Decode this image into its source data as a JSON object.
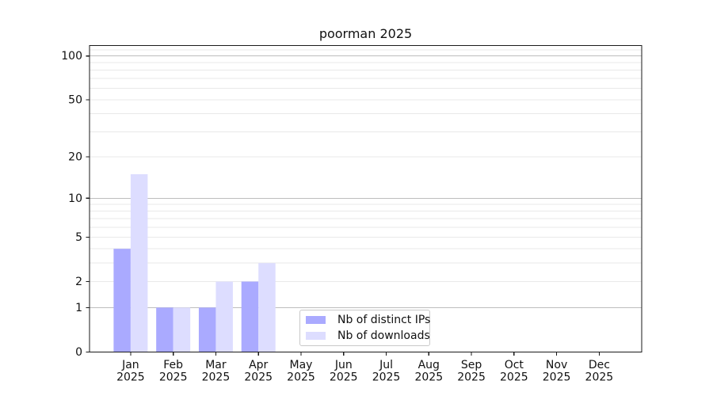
{
  "title": "poorman 2025",
  "chart_data": {
    "type": "bar",
    "title": "poorman 2025",
    "categories": [
      "Jan",
      "Feb",
      "Mar",
      "Apr",
      "May",
      "Jun",
      "Jul",
      "Aug",
      "Sep",
      "Oct",
      "Nov",
      "Dec"
    ],
    "x_year": "2025",
    "series": [
      {
        "name": "Nb of distinct IPs",
        "color": "#aaaaff",
        "values": [
          4,
          1,
          1,
          2,
          0,
          0,
          0,
          0,
          0,
          0,
          0,
          0
        ]
      },
      {
        "name": "Nb of downloads",
        "color": "#ddddff",
        "values": [
          15,
          1,
          2,
          3,
          0,
          0,
          0,
          0,
          0,
          0,
          0,
          0
        ]
      }
    ],
    "xlabel": "",
    "ylabel": "",
    "yscale": "log1p",
    "ylim": [
      0,
      119
    ],
    "ytick_labels": [
      "0",
      "1",
      "2",
      "5",
      "10",
      "20",
      "50",
      "100"
    ],
    "ytick_values": [
      0,
      1,
      2,
      5,
      10,
      20,
      50,
      100
    ],
    "grid_major_values": [
      1,
      10,
      100
    ],
    "grid_minor_values": [
      2,
      3,
      4,
      5,
      6,
      7,
      8,
      9,
      20,
      30,
      40,
      50,
      60,
      70,
      80,
      90,
      110
    ],
    "grid": "on",
    "legend_position": "lower center-right inside plot",
    "colors": {
      "grid_major": "#bdbdbd",
      "grid_minor": "#e9e9e9",
      "spine": "#1a1a1a",
      "text": "#111111",
      "background": "#ffffff"
    }
  }
}
